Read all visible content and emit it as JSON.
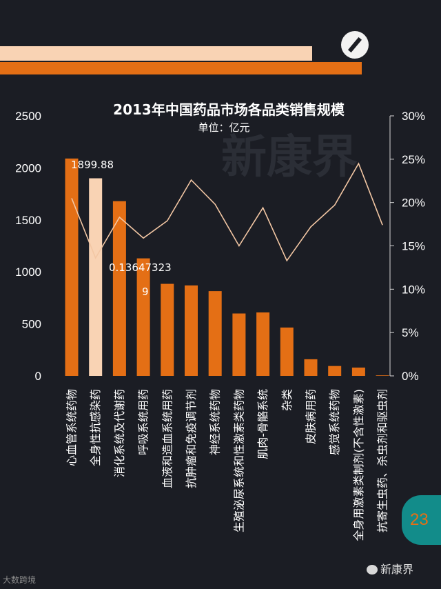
{
  "page": {
    "number": "23",
    "footer_logo": "大数跨境",
    "wechat_name": "新康界"
  },
  "colors": {
    "bar": "#e46f15",
    "highlight_bar": "#f9d3b4",
    "line": "#f3c7a4",
    "background": "#1b1d24"
  },
  "chart_data": {
    "type": "bar",
    "title": "2013年中国药品市场各品类销售规模",
    "subtitle": "单位：亿元",
    "watermark": "新康界",
    "categories": [
      "心血管系统药物",
      "全身性抗感染药",
      "消化系统及代谢药",
      "呼吸系统用药",
      "血液和造血系统用药",
      "抗肿瘤和免疫调节剂",
      "神经系统药物",
      "生殖泌尿系统和性激素类药物",
      "肌肉-骨骼系统",
      "杂类",
      "皮肤病用药",
      "感觉系统药物",
      "全身用激素类制剂(不含性激素)",
      "抗寄生虫药、杀虫剂和驱虫剂"
    ],
    "series": [
      {
        "type": "bar",
        "axis": "left",
        "values": [
          2090,
          1899.88,
          1680,
          1130,
          885,
          870,
          815,
          600,
          610,
          465,
          160,
          95,
          80,
          5
        ],
        "highlight_index": 1
      },
      {
        "type": "line",
        "axis": "right",
        "values": [
          20.5,
          13.6,
          18.3,
          15.9,
          17.9,
          22.6,
          19.8,
          15.0,
          19.4,
          13.3,
          17.2,
          19.7,
          24.5,
          17.4
        ]
      }
    ],
    "left_axis": {
      "ticks": [
        "0",
        "500",
        "1000",
        "1500",
        "2000",
        "2500"
      ],
      "ylim": [
        0,
        2500
      ]
    },
    "right_axis": {
      "ticks": [
        "0%",
        "5%",
        "10%",
        "15%",
        "20%",
        "25%",
        "30%"
      ],
      "ylim": [
        0,
        30
      ]
    },
    "annotations": [
      "1899.88",
      "0.13647323",
      "9"
    ]
  }
}
